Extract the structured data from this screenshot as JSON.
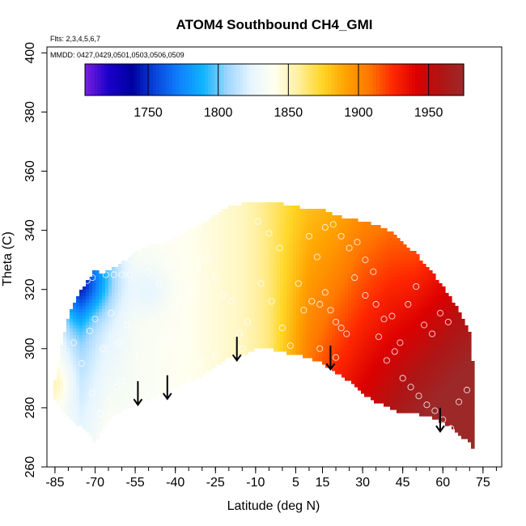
{
  "chart_data": {
    "type": "heatmap",
    "title": "ATOM4 Southbound CH4_GMI",
    "subtitle_flights": "Flts: 2,3,4,5,6,7",
    "subtitle_dates": "MMDD: 0427,0429,0501,0503,0506,0509",
    "xlabel": "Latitude (deg N)",
    "ylabel": "Theta (C)",
    "xlim": [
      -88,
      82
    ],
    "ylim": [
      260,
      402
    ],
    "x_tick_labels": [
      "-85",
      "-70",
      "-55",
      "-40",
      "-25",
      "-10",
      "5",
      "15",
      "30",
      "45",
      "60",
      "75"
    ],
    "x_tick_values": [
      -85,
      -70,
      -55,
      -40,
      -25,
      -10,
      5,
      15,
      30,
      45,
      60,
      75
    ],
    "x_minor_step": 5,
    "y_ticks": [
      260,
      280,
      300,
      320,
      340,
      360,
      380,
      400
    ],
    "colorbar": {
      "min": 1705,
      "max": 1975,
      "tick_values": [
        1750,
        1800,
        1850,
        1900,
        1950
      ],
      "tick_labels": [
        "1750",
        "1800",
        "1850",
        "1900",
        "1950"
      ],
      "colors": [
        "#7b1fe0",
        "#1a00c8",
        "#0000a0",
        "#0a46dc",
        "#0f82ff",
        "#10b4ff",
        "#9ed6ff",
        "#e6f5ff",
        "#fffff0",
        "#fff0a0",
        "#ffd728",
        "#ffa300",
        "#ff7800",
        "#ff2800",
        "#dc0000",
        "#b01414",
        "#9c2828"
      ]
    },
    "domain": {
      "lat": [
        -86,
        -85,
        -83,
        -80,
        -76,
        -72,
        -70,
        -68,
        -64,
        -60,
        -55,
        -50,
        -45,
        -40,
        -35,
        -30,
        -25,
        -20,
        -15,
        -10,
        -5,
        0,
        5,
        10,
        15,
        20,
        25,
        30,
        35,
        40,
        45,
        50,
        55,
        60,
        65,
        70,
        72
      ],
      "theta_top": [
        286,
        289,
        300,
        311,
        319,
        324,
        327,
        325,
        327,
        329,
        333,
        335,
        335,
        337,
        340,
        342,
        345,
        348,
        349,
        349,
        349,
        349,
        348,
        347,
        347,
        345,
        344,
        343,
        342,
        340,
        336,
        332,
        327,
        321,
        314,
        306,
        288
      ],
      "theta_bottom": [
        284,
        283,
        280,
        277,
        274,
        271,
        268,
        272,
        277,
        279,
        281,
        283,
        285,
        287,
        289,
        291,
        294,
        297,
        298,
        300,
        300,
        299,
        298,
        297,
        295,
        292,
        289,
        285,
        282,
        280,
        278,
        278,
        277,
        275,
        272,
        268,
        264
      ]
    },
    "field_knots": {
      "lat": [
        -85,
        -75,
        -65,
        -55,
        -45,
        -35,
        -25,
        -15,
        -5,
        5,
        10,
        20,
        30,
        40,
        50,
        60,
        70
      ],
      "ch4": [
        1840,
        1810,
        1825,
        1835,
        1838,
        1840,
        1845,
        1850,
        1862,
        1890,
        1905,
        1920,
        1932,
        1942,
        1950,
        1960,
        1970
      ],
      "theta_gradient": [
        0,
        -0.5,
        -0.5,
        0,
        0,
        0,
        0,
        0,
        0,
        -0.3,
        -0.5,
        -0.7,
        -0.7,
        -0.8,
        -1.0,
        -1.0,
        -1.0
      ]
    },
    "field_anomalies": [
      {
        "lat": -74,
        "theta": 322,
        "ch4_delta": -45,
        "lat_scale": 9,
        "theta_scale": 10
      },
      {
        "lat": -79,
        "theta": 314,
        "ch4_delta": -20,
        "lat_scale": 6,
        "theta_scale": 12
      },
      {
        "lat": -50,
        "theta": 320,
        "ch4_delta": -12,
        "lat_scale": 8,
        "theta_scale": 8
      },
      {
        "lat": -84,
        "theta": 288,
        "ch4_delta": 12,
        "lat_scale": 5,
        "theta_scale": 6
      }
    ],
    "sample_points": [
      [
        -80,
        321
      ],
      [
        -77,
        327
      ],
      [
        -75,
        331
      ],
      [
        -73,
        323
      ],
      [
        -71,
        324
      ],
      [
        -69,
        330
      ],
      [
        -66,
        325
      ],
      [
        -63,
        325
      ],
      [
        -60,
        325
      ],
      [
        -57,
        325
      ],
      [
        -55,
        338
      ],
      [
        -78,
        302
      ],
      [
        -75,
        295
      ],
      [
        -72,
        306
      ],
      [
        -70,
        310
      ],
      [
        -67,
        300
      ],
      [
        -64,
        312
      ],
      [
        -61,
        302
      ],
      [
        -58,
        308
      ],
      [
        -55,
        298
      ],
      [
        -52,
        306
      ],
      [
        -49,
        310
      ],
      [
        -46,
        298
      ],
      [
        -43,
        302
      ],
      [
        -71,
        285
      ],
      [
        -68,
        278
      ],
      [
        -65,
        282
      ],
      [
        -62,
        287
      ],
      [
        -60,
        289
      ],
      [
        -57,
        280
      ],
      [
        -54,
        283
      ],
      [
        -51,
        285
      ],
      [
        -48,
        291
      ],
      [
        -45,
        288
      ],
      [
        -50,
        326
      ],
      [
        -46,
        322
      ],
      [
        -43,
        328
      ],
      [
        -40,
        314
      ],
      [
        -37,
        312
      ],
      [
        -34,
        320
      ],
      [
        -31,
        328
      ],
      [
        -28,
        331
      ],
      [
        -25,
        324
      ],
      [
        -22,
        318
      ],
      [
        -19,
        316
      ],
      [
        -16,
        305
      ],
      [
        -13,
        309
      ],
      [
        -40,
        305
      ],
      [
        -35,
        300
      ],
      [
        -30,
        296
      ],
      [
        -25,
        298
      ],
      [
        -20,
        295
      ],
      [
        -15,
        300
      ],
      [
        -9,
        343
      ],
      [
        -5,
        339
      ],
      [
        -1,
        334
      ],
      [
        -8,
        322
      ],
      [
        -4,
        316
      ],
      [
        0,
        307
      ],
      [
        3,
        301
      ],
      [
        6,
        322
      ],
      [
        8,
        313
      ],
      [
        11,
        316
      ],
      [
        14,
        315
      ],
      [
        16,
        319
      ],
      [
        18,
        313
      ],
      [
        20,
        309
      ],
      [
        22,
        307
      ],
      [
        24,
        305
      ],
      [
        14,
        300
      ],
      [
        20,
        297
      ],
      [
        10,
        338
      ],
      [
        13,
        331
      ],
      [
        16,
        341
      ],
      [
        19,
        342
      ],
      [
        22,
        338
      ],
      [
        25,
        334
      ],
      [
        28,
        336
      ],
      [
        31,
        330
      ],
      [
        34,
        326
      ],
      [
        27,
        324
      ],
      [
        31,
        318
      ],
      [
        35,
        315
      ],
      [
        38,
        310
      ],
      [
        41,
        311
      ],
      [
        44,
        302
      ],
      [
        47,
        315
      ],
      [
        50,
        321
      ],
      [
        53,
        308
      ],
      [
        56,
        305
      ],
      [
        59,
        312
      ],
      [
        62,
        309
      ],
      [
        36,
        304
      ],
      [
        39,
        296
      ],
      [
        42,
        299
      ],
      [
        45,
        290
      ],
      [
        48,
        287
      ],
      [
        51,
        284
      ],
      [
        54,
        281
      ],
      [
        57,
        279
      ],
      [
        60,
        276
      ],
      [
        63,
        273
      ],
      [
        66,
        282
      ],
      [
        69,
        286
      ]
    ],
    "arrows": [
      {
        "lat": -54,
        "theta_from": 289,
        "theta_to": 281
      },
      {
        "lat": -43,
        "theta_from": 291,
        "theta_to": 283
      },
      {
        "lat": -17,
        "theta_from": 304,
        "theta_to": 296
      },
      {
        "lat": 18,
        "theta_from": 301,
        "theta_to": 293
      },
      {
        "lat": 59,
        "theta_from": 280,
        "theta_to": 272
      }
    ]
  }
}
